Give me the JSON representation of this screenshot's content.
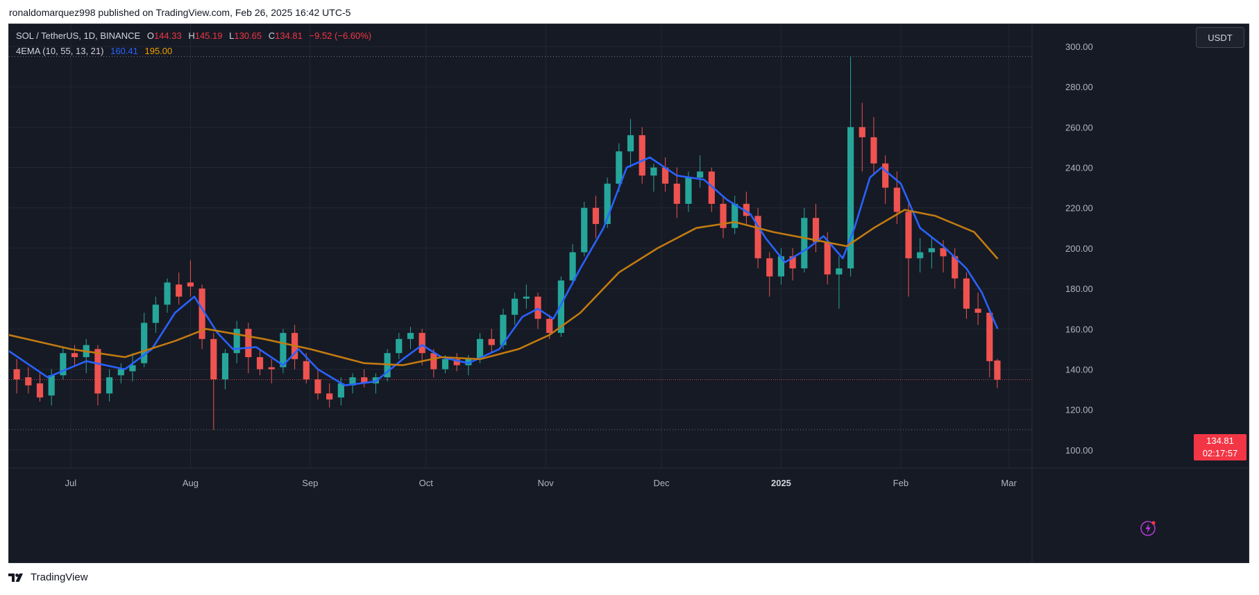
{
  "header": {
    "published_text": "ronaldomarquez998 published on TradingView.com, Feb 26, 2025 16:42 UTC-5"
  },
  "legend": {
    "symbol": "SOL / TetherUS, 1D, BINANCE",
    "o_label": "O",
    "o_value": "144.33",
    "h_label": "H",
    "h_value": "145.19",
    "l_label": "L",
    "l_value": "130.65",
    "c_label": "C",
    "c_value": "134.81",
    "change": "−9.52 (−6.60%)",
    "indicator": "4EMA (10, 55, 13, 21)",
    "ema_fast_value": "160.41",
    "ema_slow_value": "195.00"
  },
  "currency_button": "USDT",
  "last_price": {
    "value": "134.81",
    "countdown": "02:17:57"
  },
  "footer": {
    "brand": "TradingView"
  },
  "colors": {
    "background": "#161a25",
    "grid": "#232733",
    "up": "#26a69a",
    "down": "#ef5350",
    "ema_fast": "#2962ff",
    "ema_slow": "#c27b10",
    "axis_text": "#b2b5be"
  },
  "chart_data": {
    "type": "candlestick",
    "title": "SOL / TetherUS, 1D, BINANCE",
    "x_ticks": [
      {
        "label": "Jul",
        "date": "2024-07-01"
      },
      {
        "label": "Aug",
        "date": "2024-08-01"
      },
      {
        "label": "Sep",
        "date": "2024-09-01"
      },
      {
        "label": "Oct",
        "date": "2024-10-01"
      },
      {
        "label": "Nov",
        "date": "2024-11-01"
      },
      {
        "label": "Dec",
        "date": "2024-12-01"
      },
      {
        "label": "2025",
        "date": "2025-01-01"
      },
      {
        "label": "Feb",
        "date": "2025-02-01"
      },
      {
        "label": "Mar",
        "date": "2025-03-01"
      }
    ],
    "y_ticks": [
      "100.00",
      "120.00",
      "140.00",
      "160.00",
      "180.00",
      "200.00",
      "220.00",
      "240.00",
      "260.00",
      "280.00",
      "300.00"
    ],
    "ylim": [
      91,
      311
    ],
    "xlim": [
      "2024-06-15",
      "2025-03-07"
    ],
    "grid": true,
    "dotted_levels": [
      295,
      110
    ],
    "ohlc": [
      {
        "date": "2024-06-17",
        "o": 140,
        "h": 145,
        "l": 128,
        "c": 135
      },
      {
        "date": "2024-06-20",
        "o": 136,
        "h": 141,
        "l": 128,
        "c": 132
      },
      {
        "date": "2024-06-23",
        "o": 133,
        "h": 138,
        "l": 124,
        "c": 126
      },
      {
        "date": "2024-06-26",
        "o": 127,
        "h": 140,
        "l": 122,
        "c": 137
      },
      {
        "date": "2024-06-29",
        "o": 137,
        "h": 151,
        "l": 135,
        "c": 148
      },
      {
        "date": "2024-07-02",
        "o": 148,
        "h": 152,
        "l": 142,
        "c": 146
      },
      {
        "date": "2024-07-05",
        "o": 146,
        "h": 155,
        "l": 138,
        "c": 152
      },
      {
        "date": "2024-07-08",
        "o": 150,
        "h": 152,
        "l": 122,
        "c": 128
      },
      {
        "date": "2024-07-11",
        "o": 128,
        "h": 140,
        "l": 124,
        "c": 136
      },
      {
        "date": "2024-07-14",
        "o": 137,
        "h": 143,
        "l": 133,
        "c": 140
      },
      {
        "date": "2024-07-17",
        "o": 139,
        "h": 148,
        "l": 134,
        "c": 142
      },
      {
        "date": "2024-07-20",
        "o": 143,
        "h": 168,
        "l": 141,
        "c": 163
      },
      {
        "date": "2024-07-23",
        "o": 163,
        "h": 176,
        "l": 158,
        "c": 172
      },
      {
        "date": "2024-07-26",
        "o": 172,
        "h": 185,
        "l": 168,
        "c": 183
      },
      {
        "date": "2024-07-29",
        "o": 182,
        "h": 188,
        "l": 172,
        "c": 176
      },
      {
        "date": "2024-08-01",
        "o": 183,
        "h": 194,
        "l": 176,
        "c": 181
      },
      {
        "date": "2024-08-04",
        "o": 180,
        "h": 182,
        "l": 150,
        "c": 155
      },
      {
        "date": "2024-08-07",
        "o": 155,
        "h": 158,
        "l": 110,
        "c": 135
      },
      {
        "date": "2024-08-10",
        "o": 135,
        "h": 150,
        "l": 130,
        "c": 148
      },
      {
        "date": "2024-08-13",
        "o": 148,
        "h": 164,
        "l": 143,
        "c": 160
      },
      {
        "date": "2024-08-16",
        "o": 160,
        "h": 163,
        "l": 138,
        "c": 146
      },
      {
        "date": "2024-08-19",
        "o": 146,
        "h": 150,
        "l": 137,
        "c": 140
      },
      {
        "date": "2024-08-22",
        "o": 141,
        "h": 145,
        "l": 133,
        "c": 140
      },
      {
        "date": "2024-08-25",
        "o": 141,
        "h": 160,
        "l": 138,
        "c": 158
      },
      {
        "date": "2024-08-28",
        "o": 158,
        "h": 162,
        "l": 140,
        "c": 145
      },
      {
        "date": "2024-08-31",
        "o": 144,
        "h": 148,
        "l": 133,
        "c": 135
      },
      {
        "date": "2024-09-03",
        "o": 135,
        "h": 140,
        "l": 125,
        "c": 128
      },
      {
        "date": "2024-09-06",
        "o": 128,
        "h": 133,
        "l": 121,
        "c": 125
      },
      {
        "date": "2024-09-09",
        "o": 126,
        "h": 136,
        "l": 122,
        "c": 133
      },
      {
        "date": "2024-09-12",
        "o": 132,
        "h": 138,
        "l": 128,
        "c": 136
      },
      {
        "date": "2024-09-15",
        "o": 136,
        "h": 140,
        "l": 131,
        "c": 133
      },
      {
        "date": "2024-09-18",
        "o": 133,
        "h": 138,
        "l": 128,
        "c": 136
      },
      {
        "date": "2024-09-21",
        "o": 136,
        "h": 150,
        "l": 134,
        "c": 148
      },
      {
        "date": "2024-09-24",
        "o": 148,
        "h": 158,
        "l": 145,
        "c": 155
      },
      {
        "date": "2024-09-27",
        "o": 155,
        "h": 161,
        "l": 150,
        "c": 158
      },
      {
        "date": "2024-09-30",
        "o": 158,
        "h": 160,
        "l": 142,
        "c": 148
      },
      {
        "date": "2024-10-03",
        "o": 148,
        "h": 150,
        "l": 136,
        "c": 140
      },
      {
        "date": "2024-10-06",
        "o": 140,
        "h": 147,
        "l": 138,
        "c": 145
      },
      {
        "date": "2024-10-09",
        "o": 145,
        "h": 148,
        "l": 139,
        "c": 142
      },
      {
        "date": "2024-10-12",
        "o": 142,
        "h": 147,
        "l": 137,
        "c": 145
      },
      {
        "date": "2024-10-15",
        "o": 145,
        "h": 158,
        "l": 143,
        "c": 155
      },
      {
        "date": "2024-10-18",
        "o": 155,
        "h": 160,
        "l": 148,
        "c": 152
      },
      {
        "date": "2024-10-21",
        "o": 152,
        "h": 170,
        "l": 150,
        "c": 167
      },
      {
        "date": "2024-10-24",
        "o": 167,
        "h": 178,
        "l": 162,
        "c": 175
      },
      {
        "date": "2024-10-27",
        "o": 175,
        "h": 182,
        "l": 170,
        "c": 176
      },
      {
        "date": "2024-10-30",
        "o": 176,
        "h": 178,
        "l": 160,
        "c": 165
      },
      {
        "date": "2024-11-02",
        "o": 165,
        "h": 167,
        "l": 155,
        "c": 158
      },
      {
        "date": "2024-11-05",
        "o": 158,
        "h": 186,
        "l": 156,
        "c": 184
      },
      {
        "date": "2024-11-08",
        "o": 184,
        "h": 202,
        "l": 182,
        "c": 198
      },
      {
        "date": "2024-11-11",
        "o": 198,
        "h": 223,
        "l": 196,
        "c": 220
      },
      {
        "date": "2024-11-14",
        "o": 220,
        "h": 226,
        "l": 205,
        "c": 212
      },
      {
        "date": "2024-11-17",
        "o": 212,
        "h": 235,
        "l": 210,
        "c": 232
      },
      {
        "date": "2024-11-20",
        "o": 232,
        "h": 252,
        "l": 228,
        "c": 248
      },
      {
        "date": "2024-11-23",
        "o": 248,
        "h": 264,
        "l": 240,
        "c": 256
      },
      {
        "date": "2024-11-26",
        "o": 256,
        "h": 260,
        "l": 232,
        "c": 236
      },
      {
        "date": "2024-11-29",
        "o": 236,
        "h": 242,
        "l": 228,
        "c": 240
      },
      {
        "date": "2024-12-02",
        "o": 240,
        "h": 245,
        "l": 228,
        "c": 232
      },
      {
        "date": "2024-12-05",
        "o": 232,
        "h": 240,
        "l": 215,
        "c": 222
      },
      {
        "date": "2024-12-08",
        "o": 222,
        "h": 238,
        "l": 218,
        "c": 235
      },
      {
        "date": "2024-12-11",
        "o": 235,
        "h": 246,
        "l": 230,
        "c": 238
      },
      {
        "date": "2024-12-14",
        "o": 238,
        "h": 240,
        "l": 218,
        "c": 222
      },
      {
        "date": "2024-12-17",
        "o": 222,
        "h": 226,
        "l": 205,
        "c": 210
      },
      {
        "date": "2024-12-20",
        "o": 210,
        "h": 226,
        "l": 207,
        "c": 222
      },
      {
        "date": "2024-12-23",
        "o": 222,
        "h": 228,
        "l": 212,
        "c": 216
      },
      {
        "date": "2024-12-26",
        "o": 216,
        "h": 220,
        "l": 190,
        "c": 195
      },
      {
        "date": "2024-12-29",
        "o": 195,
        "h": 198,
        "l": 176,
        "c": 186
      },
      {
        "date": "2025-01-01",
        "o": 186,
        "h": 200,
        "l": 182,
        "c": 196
      },
      {
        "date": "2025-01-04",
        "o": 196,
        "h": 200,
        "l": 184,
        "c": 190
      },
      {
        "date": "2025-01-07",
        "o": 190,
        "h": 220,
        "l": 188,
        "c": 215
      },
      {
        "date": "2025-01-10",
        "o": 215,
        "h": 222,
        "l": 198,
        "c": 203
      },
      {
        "date": "2025-01-13",
        "o": 203,
        "h": 208,
        "l": 182,
        "c": 187
      },
      {
        "date": "2025-01-16",
        "o": 187,
        "h": 196,
        "l": 170,
        "c": 190
      },
      {
        "date": "2025-01-19",
        "o": 190,
        "h": 295,
        "l": 186,
        "c": 260
      },
      {
        "date": "2025-01-22",
        "o": 260,
        "h": 272,
        "l": 238,
        "c": 255
      },
      {
        "date": "2025-01-25",
        "o": 255,
        "h": 265,
        "l": 236,
        "c": 242
      },
      {
        "date": "2025-01-28",
        "o": 242,
        "h": 246,
        "l": 222,
        "c": 230
      },
      {
        "date": "2025-01-31",
        "o": 230,
        "h": 238,
        "l": 212,
        "c": 218
      },
      {
        "date": "2025-02-03",
        "o": 218,
        "h": 222,
        "l": 176,
        "c": 195
      },
      {
        "date": "2025-02-06",
        "o": 195,
        "h": 205,
        "l": 188,
        "c": 198
      },
      {
        "date": "2025-02-09",
        "o": 198,
        "h": 206,
        "l": 190,
        "c": 200
      },
      {
        "date": "2025-02-12",
        "o": 200,
        "h": 204,
        "l": 188,
        "c": 196
      },
      {
        "date": "2025-02-15",
        "o": 196,
        "h": 200,
        "l": 180,
        "c": 185
      },
      {
        "date": "2025-02-18",
        "o": 185,
        "h": 188,
        "l": 165,
        "c": 170
      },
      {
        "date": "2025-02-21",
        "o": 170,
        "h": 178,
        "l": 162,
        "c": 168
      },
      {
        "date": "2025-02-24",
        "o": 168,
        "h": 170,
        "l": 136,
        "c": 144
      },
      {
        "date": "2025-02-26",
        "o": 144.33,
        "h": 145.19,
        "l": 130.65,
        "c": 134.81
      }
    ],
    "series": [
      {
        "name": "EMA 10",
        "color": "#2962ff",
        "points": [
          [
            "2024-06-15",
            149
          ],
          [
            "2024-06-25",
            136
          ],
          [
            "2024-07-05",
            144
          ],
          [
            "2024-07-15",
            140
          ],
          [
            "2024-07-22",
            150
          ],
          [
            "2024-07-28",
            168
          ],
          [
            "2024-08-02",
            176
          ],
          [
            "2024-08-08",
            158
          ],
          [
            "2024-08-12",
            150
          ],
          [
            "2024-08-18",
            151
          ],
          [
            "2024-08-25",
            142
          ],
          [
            "2024-08-29",
            150
          ],
          [
            "2024-09-03",
            140
          ],
          [
            "2024-09-10",
            132
          ],
          [
            "2024-09-18",
            134
          ],
          [
            "2024-09-25",
            145
          ],
          [
            "2024-09-30",
            152
          ],
          [
            "2024-10-05",
            146
          ],
          [
            "2024-10-12",
            143
          ],
          [
            "2024-10-20",
            150
          ],
          [
            "2024-10-26",
            166
          ],
          [
            "2024-10-30",
            170
          ],
          [
            "2024-11-03",
            165
          ],
          [
            "2024-11-10",
            190
          ],
          [
            "2024-11-16",
            210
          ],
          [
            "2024-11-22",
            240
          ],
          [
            "2024-11-28",
            245
          ],
          [
            "2024-12-05",
            236
          ],
          [
            "2024-12-12",
            234
          ],
          [
            "2024-12-18",
            224
          ],
          [
            "2024-12-24",
            217
          ],
          [
            "2024-12-28",
            205
          ],
          [
            "2025-01-02",
            193
          ],
          [
            "2025-01-08",
            200
          ],
          [
            "2025-01-12",
            206
          ],
          [
            "2025-01-17",
            195
          ],
          [
            "2025-01-20",
            210
          ],
          [
            "2025-01-24",
            235
          ],
          [
            "2025-01-27",
            240
          ],
          [
            "2025-02-01",
            232
          ],
          [
            "2025-02-06",
            210
          ],
          [
            "2025-02-12",
            201
          ],
          [
            "2025-02-18",
            190
          ],
          [
            "2025-02-22",
            178
          ],
          [
            "2025-02-26",
            160.41
          ]
        ]
      },
      {
        "name": "EMA 55",
        "color": "#c27b10",
        "points": [
          [
            "2024-06-15",
            157
          ],
          [
            "2024-07-01",
            150
          ],
          [
            "2024-07-15",
            146
          ],
          [
            "2024-07-28",
            154
          ],
          [
            "2024-08-05",
            160
          ],
          [
            "2024-08-20",
            155
          ],
          [
            "2024-09-01",
            150
          ],
          [
            "2024-09-15",
            143
          ],
          [
            "2024-09-25",
            142
          ],
          [
            "2024-10-05",
            146
          ],
          [
            "2024-10-15",
            145
          ],
          [
            "2024-10-25",
            150
          ],
          [
            "2024-11-02",
            157
          ],
          [
            "2024-11-10",
            168
          ],
          [
            "2024-11-20",
            188
          ],
          [
            "2024-11-30",
            200
          ],
          [
            "2024-12-10",
            210
          ],
          [
            "2024-12-20",
            213
          ],
          [
            "2024-12-30",
            208
          ],
          [
            "2025-01-10",
            204
          ],
          [
            "2025-01-18",
            201
          ],
          [
            "2025-01-25",
            210
          ],
          [
            "2025-02-02",
            219
          ],
          [
            "2025-02-10",
            216
          ],
          [
            "2025-02-20",
            208
          ],
          [
            "2025-02-26",
            195.0
          ]
        ]
      }
    ],
    "last_close": 134.81
  }
}
